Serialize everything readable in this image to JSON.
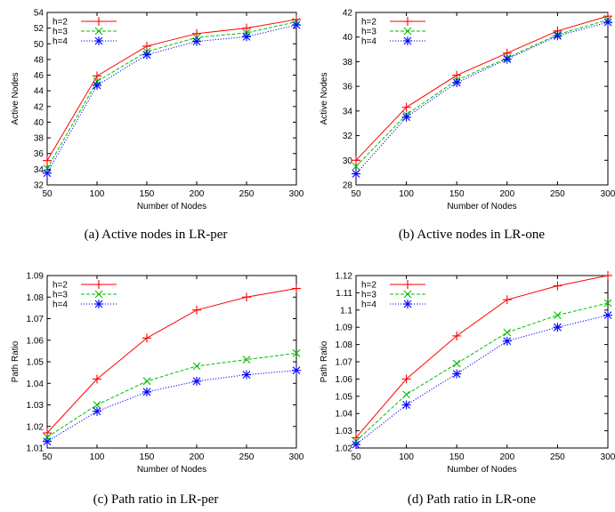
{
  "chart_data": [
    {
      "type": "line",
      "caption": "(a) Active nodes in LR-per",
      "xlabel": "Number of Nodes",
      "ylabel": "Active Nodes",
      "x": [
        50,
        100,
        150,
        200,
        250,
        300
      ],
      "xticks": [
        "50",
        "100",
        "150",
        "200",
        "250",
        "300"
      ],
      "xlim": [
        50,
        300
      ],
      "ylim": [
        32,
        54
      ],
      "yticks": [
        "32",
        "34",
        "36",
        "38",
        "40",
        "42",
        "44",
        "46",
        "48",
        "50",
        "52",
        "54"
      ],
      "legend": "top-left",
      "grid": false,
      "series": [
        {
          "name": "h=2",
          "color": "#ff0000",
          "marker": "plus",
          "dash": "solid",
          "values": [
            35.1,
            45.9,
            49.7,
            51.3,
            52.0,
            53.1
          ]
        },
        {
          "name": "h=3",
          "color": "#00c000",
          "marker": "cross",
          "dash": "dashed",
          "values": [
            34.1,
            45.2,
            49.0,
            50.8,
            51.4,
            52.8
          ]
        },
        {
          "name": "h=4",
          "color": "#0000ff",
          "marker": "star",
          "dash": "dotted",
          "values": [
            33.5,
            44.7,
            48.6,
            50.3,
            50.9,
            52.4
          ]
        }
      ]
    },
    {
      "type": "line",
      "caption": "(b) Active nodes in LR-one",
      "xlabel": "Number of Nodes",
      "ylabel": "Active Nodes",
      "x": [
        50,
        100,
        150,
        200,
        250,
        300
      ],
      "xticks": [
        "50",
        "100",
        "150",
        "200",
        "250",
        "300"
      ],
      "xlim": [
        50,
        300
      ],
      "ylim": [
        28,
        42
      ],
      "yticks": [
        "28",
        "30",
        "32",
        "34",
        "36",
        "38",
        "40",
        "42"
      ],
      "legend": "top-left",
      "grid": false,
      "series": [
        {
          "name": "h=2",
          "color": "#ff0000",
          "marker": "plus",
          "dash": "solid",
          "values": [
            30.0,
            34.3,
            36.9,
            38.7,
            40.5,
            41.7
          ]
        },
        {
          "name": "h=3",
          "color": "#00c000",
          "marker": "cross",
          "dash": "dashed",
          "values": [
            29.5,
            33.7,
            36.5,
            38.3,
            40.2,
            41.4
          ]
        },
        {
          "name": "h=4",
          "color": "#0000ff",
          "marker": "star",
          "dash": "dotted",
          "values": [
            28.9,
            33.5,
            36.3,
            38.2,
            40.1,
            41.2
          ]
        }
      ]
    },
    {
      "type": "line",
      "caption": "(c) Path ratio in LR-per",
      "xlabel": "Number of Nodes",
      "ylabel": "Path Ratio",
      "x": [
        50,
        100,
        150,
        200,
        250,
        300
      ],
      "xticks": [
        "50",
        "100",
        "150",
        "200",
        "250",
        "300"
      ],
      "xlim": [
        50,
        300
      ],
      "ylim": [
        1.01,
        1.09
      ],
      "yticks": [
        "1.01",
        "1.02",
        "1.03",
        "1.04",
        "1.05",
        "1.06",
        "1.07",
        "1.08",
        "1.09"
      ],
      "legend": "top-left",
      "grid": false,
      "series": [
        {
          "name": "h=2",
          "color": "#ff0000",
          "marker": "plus",
          "dash": "solid",
          "values": [
            1.017,
            1.042,
            1.061,
            1.074,
            1.08,
            1.084
          ]
        },
        {
          "name": "h=3",
          "color": "#00c000",
          "marker": "cross",
          "dash": "dashed",
          "values": [
            1.015,
            1.03,
            1.041,
            1.048,
            1.051,
            1.054
          ]
        },
        {
          "name": "h=4",
          "color": "#0000ff",
          "marker": "star",
          "dash": "dotted",
          "values": [
            1.013,
            1.027,
            1.036,
            1.041,
            1.044,
            1.046
          ]
        }
      ]
    },
    {
      "type": "line",
      "caption": "(d) Path ratio in LR-one",
      "xlabel": "Number of Nodes",
      "ylabel": "Path Ratio",
      "x": [
        50,
        100,
        150,
        200,
        250,
        300
      ],
      "xticks": [
        "50",
        "100",
        "150",
        "200",
        "250",
        "300"
      ],
      "xlim": [
        50,
        300
      ],
      "ylim": [
        1.02,
        1.12
      ],
      "yticks": [
        "1.02",
        "1.03",
        "1.04",
        "1.05",
        "1.06",
        "1.07",
        "1.08",
        "1.09",
        "1.1",
        "1.11",
        "1.12"
      ],
      "legend": "top-left",
      "grid": false,
      "series": [
        {
          "name": "h=2",
          "color": "#ff0000",
          "marker": "plus",
          "dash": "solid",
          "values": [
            1.026,
            1.06,
            1.085,
            1.106,
            1.114,
            1.12
          ]
        },
        {
          "name": "h=3",
          "color": "#00c000",
          "marker": "cross",
          "dash": "dashed",
          "values": [
            1.024,
            1.051,
            1.069,
            1.087,
            1.097,
            1.104
          ]
        },
        {
          "name": "h=4",
          "color": "#0000ff",
          "marker": "star",
          "dash": "dotted",
          "values": [
            1.022,
            1.045,
            1.063,
            1.082,
            1.09,
            1.097
          ]
        }
      ]
    }
  ]
}
